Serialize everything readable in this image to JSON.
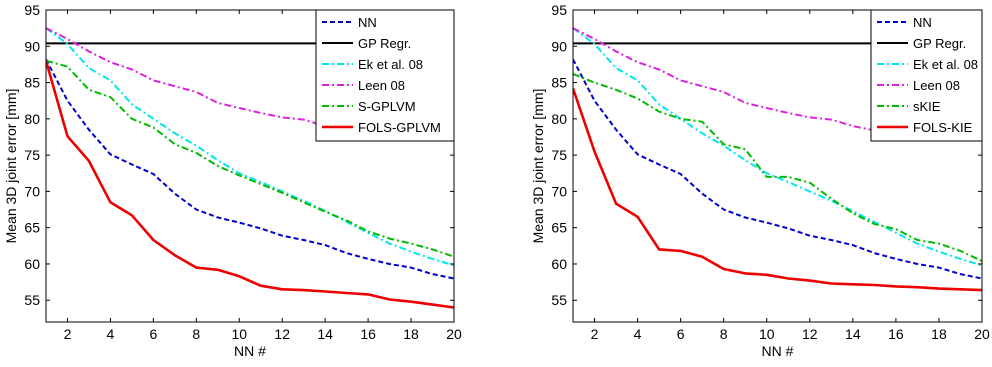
{
  "chart_data": [
    {
      "type": "line",
      "xlabel": "NN #",
      "ylabel": "Mean 3D joint error [mm]",
      "xlim": [
        1,
        20
      ],
      "ylim": [
        52,
        95
      ],
      "xticks": [
        2,
        4,
        6,
        8,
        10,
        12,
        14,
        16,
        18,
        20
      ],
      "yticks": [
        55,
        60,
        65,
        70,
        75,
        80,
        85,
        90,
        95
      ],
      "grid": false,
      "legend_position": "top-right",
      "x": [
        1,
        2,
        3,
        4,
        5,
        6,
        7,
        8,
        9,
        10,
        11,
        12,
        13,
        14,
        15,
        16,
        17,
        18,
        19,
        20
      ],
      "series": [
        {
          "name": "NN",
          "color": "#0000cc",
          "dash": "dashed",
          "values": [
            88.2,
            82.5,
            78.5,
            75.1,
            73.7,
            72.4,
            69.7,
            67.5,
            66.4,
            65.7,
            64.9,
            63.9,
            63.3,
            62.6,
            61.5,
            60.7,
            60.0,
            59.5,
            58.6,
            58.0
          ]
        },
        {
          "name": "GP Regr.",
          "color": "#000000",
          "dash": "solid",
          "values": [
            90.4,
            90.4,
            90.4,
            90.4,
            90.4,
            90.4,
            90.4,
            90.4,
            90.4,
            90.4,
            90.4,
            90.4,
            90.4,
            90.4,
            90.4,
            90.4,
            90.4,
            90.4,
            90.4,
            90.4
          ]
        },
        {
          "name": "Ek et al. 08",
          "color": "#00e5ee",
          "dash": "dashdot",
          "values": [
            92.5,
            90.3,
            87.0,
            85.3,
            82.0,
            80.0,
            78.0,
            76.3,
            74.3,
            72.5,
            71.3,
            70.0,
            68.7,
            67.3,
            65.8,
            64.3,
            62.8,
            61.7,
            60.7,
            59.8
          ]
        },
        {
          "name": "Leen 08",
          "color": "#dd22dd",
          "dash": "dashdot",
          "values": [
            92.5,
            91.0,
            89.3,
            87.8,
            86.8,
            85.3,
            84.5,
            83.7,
            82.2,
            81.5,
            80.8,
            80.2,
            79.9,
            79.0,
            78.4,
            78.1,
            77.8,
            77.5,
            77.1,
            77.0
          ]
        },
        {
          "name": "S-GPLVM",
          "color": "#00bb00",
          "dash": "dashdot",
          "values": [
            88.0,
            87.2,
            84.0,
            83.0,
            80.0,
            78.8,
            76.5,
            75.3,
            73.5,
            72.2,
            71.0,
            69.8,
            68.5,
            67.2,
            66.0,
            64.5,
            63.5,
            62.8,
            62.0,
            61.0
          ]
        },
        {
          "name": "FOLS-GPLVM",
          "color": "#ee0000",
          "dash": "solid",
          "values": [
            88.0,
            77.6,
            74.2,
            68.5,
            66.7,
            63.3,
            61.2,
            59.5,
            59.2,
            58.3,
            57.0,
            56.5,
            56.4,
            56.2,
            56.0,
            55.8,
            55.1,
            54.8,
            54.4,
            54.0
          ]
        }
      ]
    },
    {
      "type": "line",
      "xlabel": "NN #",
      "ylabel": "Mean 3D joint error [mm]",
      "xlim": [
        1,
        20
      ],
      "ylim": [
        52,
        95
      ],
      "xticks": [
        2,
        4,
        6,
        8,
        10,
        12,
        14,
        16,
        18,
        20
      ],
      "yticks": [
        55,
        60,
        65,
        70,
        75,
        80,
        85,
        90,
        95
      ],
      "grid": false,
      "legend_position": "top-right",
      "x": [
        1,
        2,
        3,
        4,
        5,
        6,
        7,
        8,
        9,
        10,
        11,
        12,
        13,
        14,
        15,
        16,
        17,
        18,
        19,
        20
      ],
      "series": [
        {
          "name": "NN",
          "color": "#0000cc",
          "dash": "dashed",
          "values": [
            88.2,
            82.5,
            78.5,
            75.1,
            73.7,
            72.4,
            69.7,
            67.5,
            66.4,
            65.7,
            64.9,
            63.9,
            63.3,
            62.6,
            61.5,
            60.7,
            60.0,
            59.5,
            58.6,
            58.0
          ]
        },
        {
          "name": "GP Regr.",
          "color": "#000000",
          "dash": "solid",
          "values": [
            90.4,
            90.4,
            90.4,
            90.4,
            90.4,
            90.4,
            90.4,
            90.4,
            90.4,
            90.4,
            90.4,
            90.4,
            90.4,
            90.4,
            90.4,
            90.4,
            90.4,
            90.4,
            90.4,
            90.4
          ]
        },
        {
          "name": "Ek et al. 08",
          "color": "#00e5ee",
          "dash": "dashdot",
          "values": [
            92.5,
            90.3,
            87.0,
            85.3,
            82.0,
            80.0,
            78.0,
            76.3,
            74.3,
            72.5,
            71.3,
            70.0,
            68.7,
            67.3,
            65.8,
            64.3,
            62.8,
            61.7,
            60.7,
            59.8
          ]
        },
        {
          "name": "Leen 08",
          "color": "#dd22dd",
          "dash": "dashdot",
          "values": [
            92.5,
            91.0,
            89.3,
            87.8,
            86.8,
            85.3,
            84.5,
            83.7,
            82.2,
            81.5,
            80.8,
            80.2,
            79.9,
            79.0,
            78.4,
            78.1,
            77.8,
            77.5,
            77.1,
            77.0
          ]
        },
        {
          "name": "sKIE",
          "color": "#00bb00",
          "dash": "dashdot",
          "values": [
            86.2,
            85.0,
            84.0,
            82.8,
            81.0,
            80.0,
            79.6,
            76.5,
            75.8,
            72.0,
            72.0,
            71.2,
            69.0,
            67.0,
            65.5,
            64.8,
            63.3,
            62.8,
            61.8,
            60.4
          ]
        },
        {
          "name": "FOLS-KIE",
          "color": "#ee0000",
          "dash": "solid",
          "values": [
            84.2,
            75.5,
            68.3,
            66.5,
            62.0,
            61.8,
            61.0,
            59.3,
            58.7,
            58.5,
            58.0,
            57.7,
            57.3,
            57.2,
            57.1,
            56.9,
            56.8,
            56.6,
            56.5,
            56.4
          ]
        }
      ]
    }
  ]
}
